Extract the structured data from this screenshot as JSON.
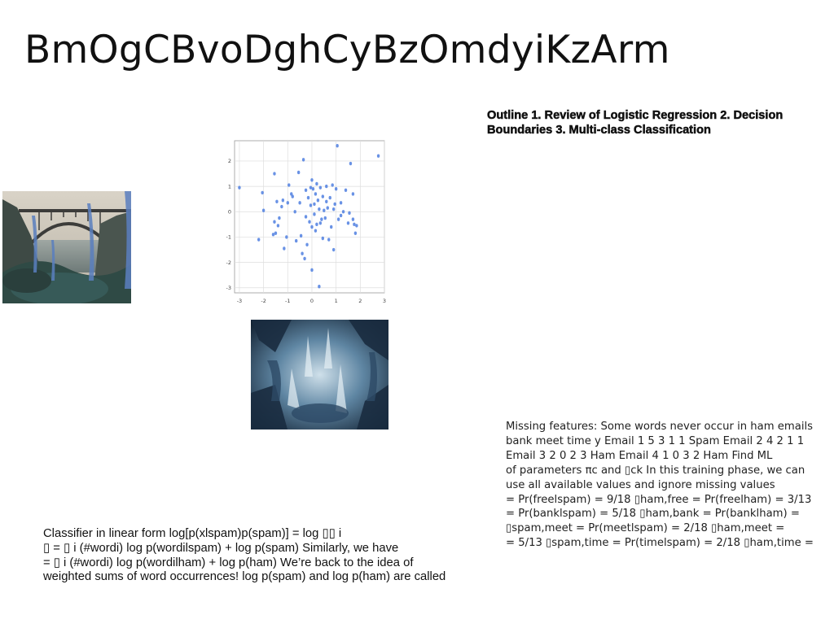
{
  "title": "BmOgCBvoDghCyBzOmdyiKzArm",
  "outline": "Outline 1. Review of Logistic Regression 2. Decision Boundaries 3. Multi-class Classification",
  "missing_features": {
    "lines": [
      "Missing features: Some words never occur in ham emails",
      "bank meet time y Email 1 5 3 1 1 Spam Email 2 4 2 1 1",
      "Email 3 2 0 2 3 Ham Email 4 1 0 3 2 Ham Find ML",
      "of parameters πc and ▯ck In this training phase, we can",
      "use all available values and ignore missing values",
      "= Pr(freelspam) = 9/18 ▯ham,free = Pr(freelham) = 3/13",
      "= Pr(banklspam) = 5/18 ▯ham,bank = Pr(banklham) =",
      "▯spam,meet = Pr(meetlspam) = 2/18 ▯ham,meet =",
      "= 5/13 ▯spam,time = Pr(timelspam) = 2/18 ▯ham,time ="
    ]
  },
  "classifier": {
    "lines": [
      "Classifier in linear form log[p(xlspam)p(spam)] = log ▯▯ i",
      "▯ = ▯ i (#wordi) log p(wordilspam) + log p(spam) Similarly, we have",
      "= ▯ i (#wordi) log p(wordilham) + log p(ham) We’re back to the idea of",
      "weighted sums of word occurrences! log p(spam) and log p(ham) are called"
    ]
  },
  "chart_data": {
    "type": "scatter",
    "title": "",
    "xlabel": "",
    "ylabel": "",
    "xlim": [
      -3.2,
      3.0
    ],
    "ylim": [
      -3.2,
      2.8
    ],
    "grid": true,
    "x_ticks": [
      "-3",
      "-2",
      "-1",
      "0",
      "1",
      "2",
      "3"
    ],
    "y_ticks": [
      "2",
      "1",
      "0",
      "-1",
      "-2",
      "-3"
    ],
    "point_color": "#4f7fe0",
    "points": [
      [
        -3.0,
        0.95
      ],
      [
        -2.2,
        -1.1
      ],
      [
        -2.05,
        0.75
      ],
      [
        -2.0,
        0.05
      ],
      [
        -1.55,
        1.5
      ],
      [
        -1.55,
        -0.4
      ],
      [
        -1.5,
        -0.85
      ],
      [
        -1.45,
        0.4
      ],
      [
        -1.4,
        -0.55
      ],
      [
        -1.35,
        -0.25
      ],
      [
        -1.25,
        0.2
      ],
      [
        -1.2,
        0.45
      ],
      [
        -1.15,
        -1.45
      ],
      [
        -1.05,
        -1.0
      ],
      [
        -1.0,
        0.35
      ],
      [
        -0.95,
        1.05
      ],
      [
        -0.85,
        0.7
      ],
      [
        -0.8,
        0.6
      ],
      [
        -0.65,
        -1.15
      ],
      [
        -0.55,
        1.55
      ],
      [
        -0.45,
        -0.95
      ],
      [
        -0.4,
        -1.65
      ],
      [
        -0.35,
        2.05
      ],
      [
        -0.3,
        -1.85
      ],
      [
        -0.25,
        0.85
      ],
      [
        -0.2,
        -1.3
      ],
      [
        -0.15,
        0.55
      ],
      [
        -0.1,
        -0.4
      ],
      [
        -0.05,
        0.25
      ],
      [
        0.0,
        1.25
      ],
      [
        0.0,
        -0.6
      ],
      [
        0.0,
        -2.3
      ],
      [
        0.05,
        0.9
      ],
      [
        0.1,
        -0.1
      ],
      [
        0.1,
        0.3
      ],
      [
        0.15,
        -0.75
      ],
      [
        0.2,
        1.1
      ],
      [
        0.2,
        -0.5
      ],
      [
        0.25,
        0.45
      ],
      [
        0.3,
        -2.95
      ],
      [
        0.3,
        0.1
      ],
      [
        0.35,
        0.95
      ],
      [
        0.4,
        -0.3
      ],
      [
        0.45,
        0.6
      ],
      [
        0.5,
        0.05
      ],
      [
        0.55,
        -0.25
      ],
      [
        0.6,
        1.0
      ],
      [
        0.65,
        0.15
      ],
      [
        0.7,
        -1.1
      ],
      [
        0.75,
        0.55
      ],
      [
        0.8,
        -0.6
      ],
      [
        0.85,
        1.05
      ],
      [
        0.9,
        -1.5
      ],
      [
        0.95,
        0.3
      ],
      [
        1.0,
        0.9
      ],
      [
        1.05,
        2.6
      ],
      [
        1.1,
        -0.3
      ],
      [
        1.2,
        -0.15
      ],
      [
        1.3,
        0.0
      ],
      [
        1.4,
        0.85
      ],
      [
        1.5,
        -0.45
      ],
      [
        1.55,
        -0.05
      ],
      [
        1.6,
        1.9
      ],
      [
        1.7,
        -0.3
      ],
      [
        1.7,
        0.7
      ],
      [
        1.75,
        -0.5
      ],
      [
        1.8,
        -0.85
      ],
      [
        1.85,
        -0.55
      ],
      [
        2.75,
        2.2
      ],
      [
        -0.7,
        0.0
      ],
      [
        -0.5,
        0.35
      ],
      [
        0.6,
        0.4
      ],
      [
        0.45,
        -1.05
      ],
      [
        -0.25,
        -0.2
      ],
      [
        0.15,
        0.7
      ],
      [
        0.9,
        0.1
      ],
      [
        -1.6,
        -0.9
      ],
      [
        1.2,
        0.35
      ],
      [
        0.35,
        -0.45
      ],
      [
        -0.05,
        0.95
      ]
    ]
  }
}
